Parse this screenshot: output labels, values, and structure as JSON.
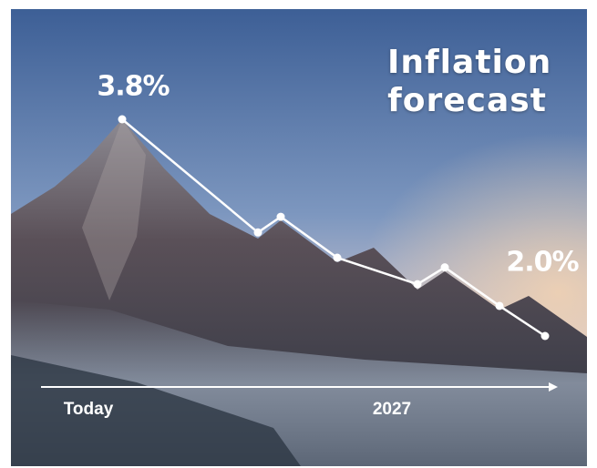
{
  "chart_data": {
    "type": "line",
    "title": "Inflation forecast",
    "categories": [
      null,
      null,
      null,
      null,
      null,
      null,
      null,
      null
    ],
    "values": [
      3.8,
      2.86,
      2.99,
      2.65,
      2.43,
      2.57,
      2.25,
      2.0
    ],
    "value_labels": [
      "3.8%",
      null,
      null,
      null,
      null,
      null,
      null,
      "2.0%"
    ],
    "x_labels": [
      "Today",
      "2027"
    ],
    "color": "#ffffff"
  }
}
